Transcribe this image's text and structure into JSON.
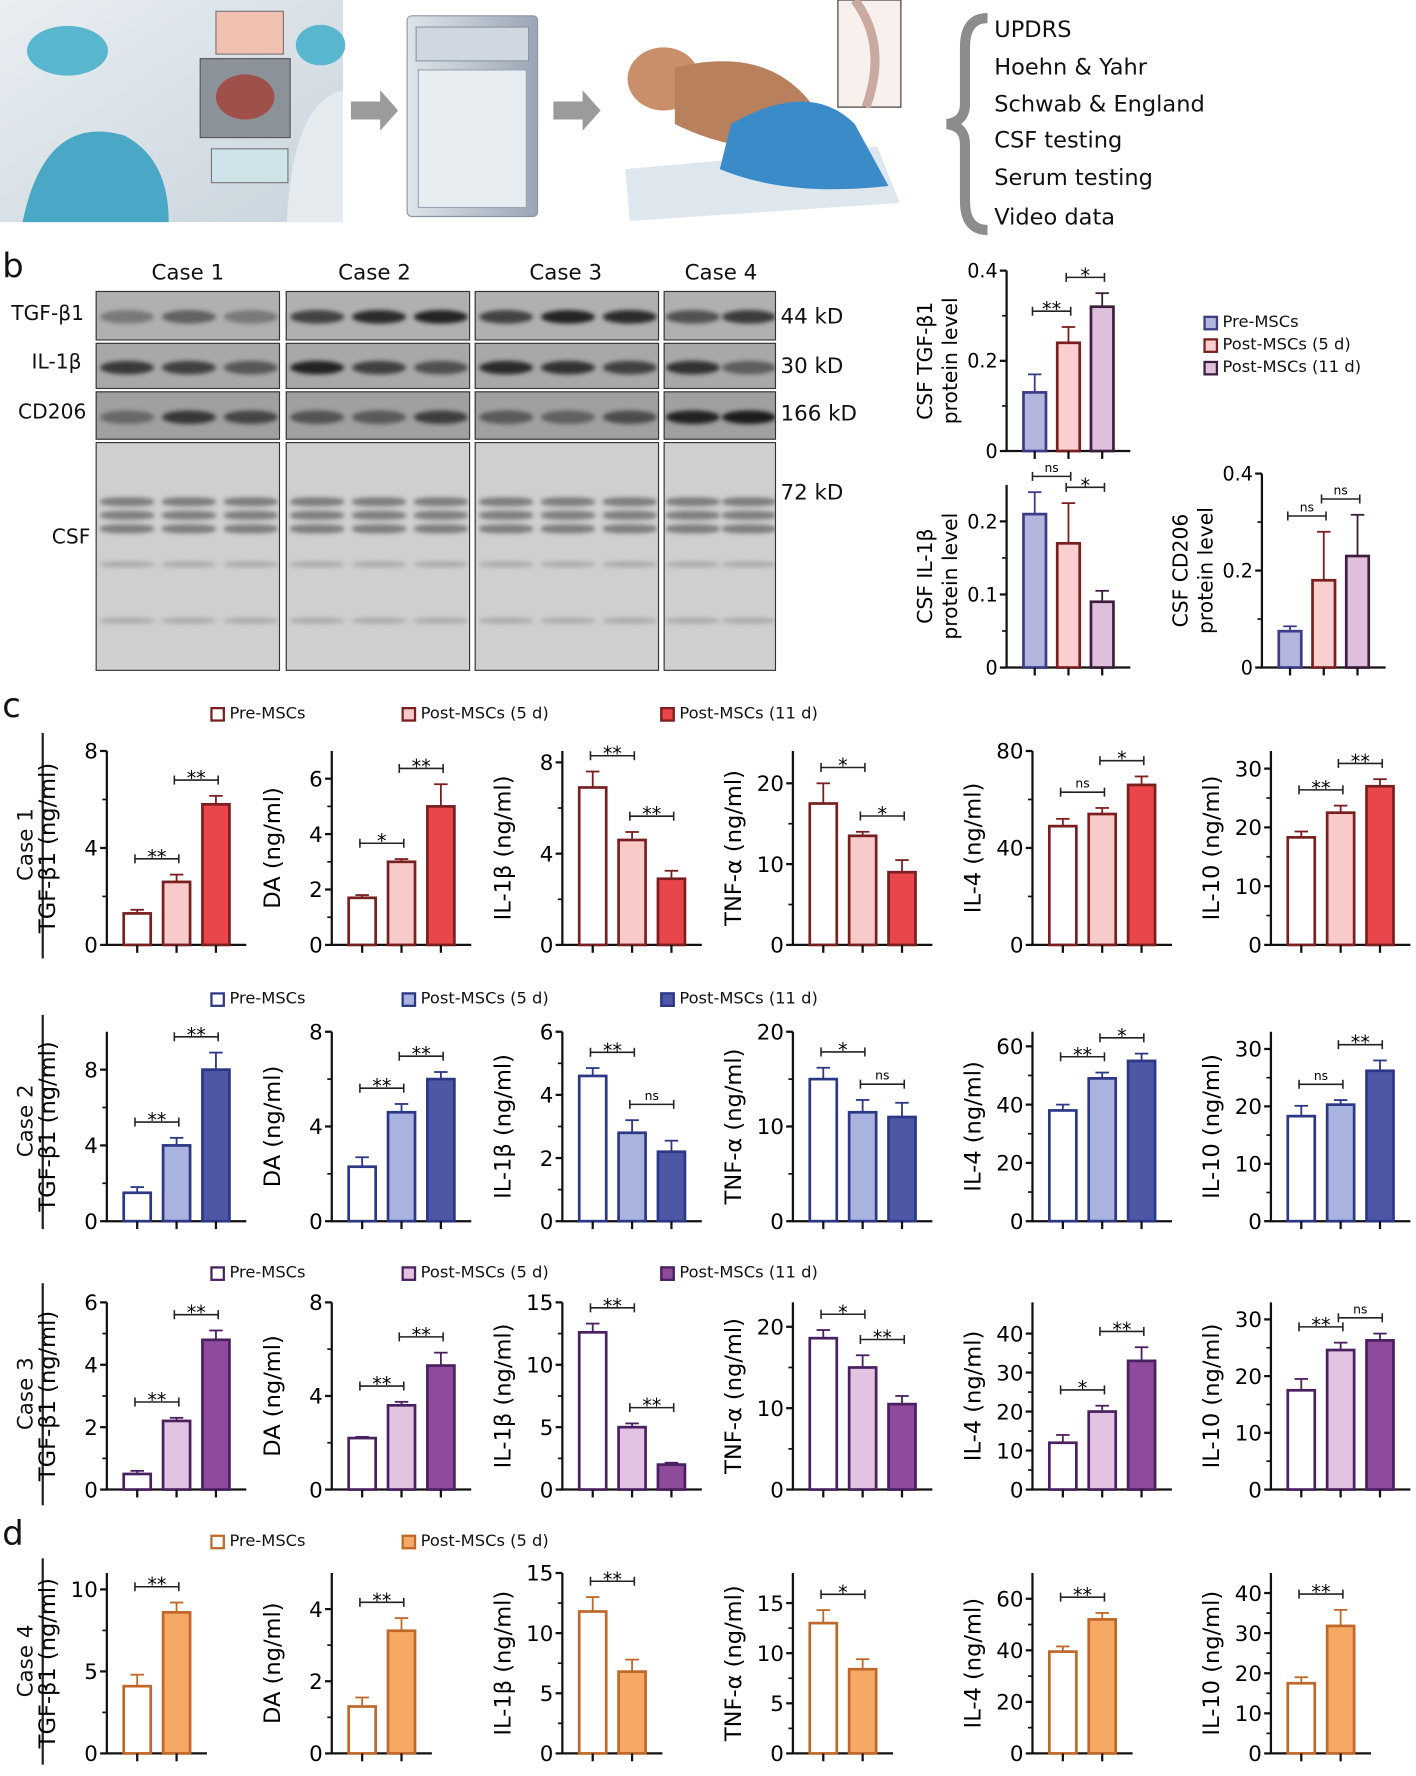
{
  "panels": {
    "a": "a",
    "b": "b",
    "c": "c",
    "d": "d"
  },
  "panel_a": {
    "outcomes": [
      "UPDRS",
      "Hoehn & Yahr",
      "Schwab & England",
      "CSF testing",
      "Serum testing",
      "Video data"
    ]
  },
  "panel_b_blot": {
    "cases": [
      "Case 1",
      "Case 2",
      "Case 3",
      "Case 4"
    ],
    "rows": [
      "TGF-β1",
      "IL-1β",
      "CD206",
      "CSF"
    ],
    "sizes": [
      "44 kD",
      "30 kD",
      "166 kD",
      "72 kD"
    ]
  },
  "legends": {
    "b": [
      "Pre-MSCs",
      "Post-MSCs (5 d)",
      "Post-MSCs (11 d)"
    ],
    "case1": [
      "Pre-MSCs",
      "Post-MSCs (5 d)",
      "Post-MSCs (11 d)"
    ],
    "case2": [
      "Pre-MSCs",
      "Post-MSCs (5 d)",
      "Post-MSCs (11 d)"
    ],
    "case3": [
      "Pre-MSCs",
      "Post-MSCs (5 d)",
      "Post-MSCs (11 d)"
    ],
    "case4": [
      "Pre-MSCs",
      "Post-MSCs (5 d)"
    ]
  },
  "row_labels": {
    "case1": "Case 1",
    "case2": "Case 2",
    "case3": "Case 3",
    "case4": "Case 4"
  },
  "colors": {
    "b": {
      "fills": [
        "#b3b6dc",
        "#fbcfd0",
        "#dfbfdc"
      ],
      "strokes": [
        "#3c3c88",
        "#7a1f1f",
        "#3c1f3c"
      ]
    },
    "case1": {
      "fills": [
        "#ffffff",
        "#f9caca",
        "#e8464a"
      ],
      "strokes": [
        "#7a1f1f",
        "#7a1f1f",
        "#7a1f1f"
      ]
    },
    "case2": {
      "fills": [
        "#ffffff",
        "#aab3df",
        "#4d57a6"
      ],
      "strokes": [
        "#2c3785",
        "#2c3785",
        "#2c3785"
      ]
    },
    "case3": {
      "fills": [
        "#ffffff",
        "#e2c3e2",
        "#8e4b9c"
      ],
      "strokes": [
        "#4a2060",
        "#4a2060",
        "#4a2060"
      ]
    },
    "case4": {
      "fills": [
        "#ffffff",
        "#f6a865"
      ],
      "strokes": [
        "#c0682a",
        "#c0682a"
      ]
    }
  },
  "chart_data": [
    {
      "id": "b-tgf",
      "group": "b",
      "type": "bar",
      "ylabel": [
        "CSF TGF-β1",
        "protein level"
      ],
      "ylim": [
        0,
        0.4
      ],
      "ticks": [
        "0",
        "0.2",
        "0.4"
      ],
      "tick_values": [
        0,
        0.2,
        0.4
      ],
      "values": [
        0.13,
        0.24,
        0.32
      ],
      "errors": [
        0.04,
        0.035,
        0.03
      ],
      "sig": [
        {
          "from": 0,
          "to": 1,
          "label": "**"
        },
        {
          "from": 1,
          "to": 2,
          "label": "*"
        }
      ]
    },
    {
      "id": "b-il1b",
      "group": "b",
      "type": "bar",
      "ylabel": [
        "CSF IL-1β",
        "protein level"
      ],
      "ylim": [
        0,
        0.25
      ],
      "ticks": [
        "0",
        "0.1",
        "0.2"
      ],
      "tick_values": [
        0,
        0.1,
        0.2
      ],
      "values": [
        0.21,
        0.17,
        0.09
      ],
      "errors": [
        0.03,
        0.055,
        0.015
      ],
      "sig": [
        {
          "from": 0,
          "to": 1,
          "label": "ns"
        },
        {
          "from": 1,
          "to": 2,
          "label": "*"
        }
      ]
    },
    {
      "id": "b-cd206",
      "group": "b",
      "type": "bar",
      "ylabel": [
        "CSF CD206",
        "protein level"
      ],
      "ylim": [
        0,
        0.4
      ],
      "ticks": [
        "0",
        "0.2",
        "0.4"
      ],
      "tick_values": [
        0,
        0.2,
        0.4
      ],
      "values": [
        0.075,
        0.18,
        0.23
      ],
      "errors": [
        0.01,
        0.1,
        0.085
      ],
      "sig": [
        {
          "from": 0,
          "to": 1,
          "label": "ns"
        },
        {
          "from": 1,
          "to": 2,
          "label": "ns"
        }
      ]
    },
    {
      "id": "c1-tgf",
      "group": "case1",
      "type": "bar",
      "ylabel": [
        "TGF-β1 (ng/ml)"
      ],
      "ylim": [
        0,
        8
      ],
      "ticks": [
        "0",
        "4",
        "8"
      ],
      "tick_values": [
        0,
        4,
        8
      ],
      "values": [
        1.3,
        2.6,
        5.8
      ],
      "errors": [
        0.15,
        0.3,
        0.35
      ],
      "sig": [
        {
          "from": 0,
          "to": 1,
          "label": "**"
        },
        {
          "from": 1,
          "to": 2,
          "label": "**"
        }
      ]
    },
    {
      "id": "c1-da",
      "group": "case1",
      "type": "bar",
      "ylabel": [
        "DA (ng/ml)"
      ],
      "ylim": [
        0,
        7
      ],
      "ticks": [
        "0",
        "2",
        "4",
        "6"
      ],
      "tick_values": [
        0,
        2,
        4,
        6
      ],
      "values": [
        1.7,
        3.0,
        5.0
      ],
      "errors": [
        0.1,
        0.1,
        0.8
      ],
      "sig": [
        {
          "from": 0,
          "to": 1,
          "label": "*"
        },
        {
          "from": 1,
          "to": 2,
          "label": "**"
        }
      ]
    },
    {
      "id": "c1-il1b",
      "group": "case1",
      "type": "bar",
      "ylabel": [
        "IL-1β (ng/ml)"
      ],
      "ylim": [
        0,
        8.5
      ],
      "ticks": [
        "0",
        "4",
        "8"
      ],
      "tick_values": [
        0,
        4,
        8
      ],
      "values": [
        6.9,
        4.6,
        2.9
      ],
      "errors": [
        0.7,
        0.35,
        0.35
      ],
      "sig": [
        {
          "from": 0,
          "to": 1,
          "label": "**"
        },
        {
          "from": 1,
          "to": 2,
          "label": "**"
        }
      ]
    },
    {
      "id": "c1-tnf",
      "group": "case1",
      "type": "bar",
      "ylabel": [
        "TNF-α (ng/ml)"
      ],
      "ylim": [
        0,
        24
      ],
      "ticks": [
        "0",
        "10",
        "20"
      ],
      "tick_values": [
        0,
        10,
        20
      ],
      "values": [
        17.5,
        13.5,
        9.0
      ],
      "errors": [
        2.5,
        0.5,
        1.5
      ],
      "sig": [
        {
          "from": 0,
          "to": 1,
          "label": "*"
        },
        {
          "from": 1,
          "to": 2,
          "label": "*"
        }
      ]
    },
    {
      "id": "c1-il4",
      "group": "case1",
      "type": "bar",
      "ylabel": [
        "IL-4 (ng/ml)"
      ],
      "ylim": [
        0,
        80
      ],
      "ticks": [
        "0",
        "40",
        "80"
      ],
      "tick_values": [
        0,
        40,
        80
      ],
      "values": [
        49,
        54,
        66
      ],
      "errors": [
        3,
        2.5,
        3.5
      ],
      "sig": [
        {
          "from": 0,
          "to": 1,
          "label": "ns"
        },
        {
          "from": 1,
          "to": 2,
          "label": "*"
        }
      ]
    },
    {
      "id": "c1-il10",
      "group": "case1",
      "type": "bar",
      "ylabel": [
        "IL-10 (ng/ml)"
      ],
      "ylim": [
        0,
        33
      ],
      "ticks": [
        "0",
        "10",
        "20",
        "30"
      ],
      "tick_values": [
        0,
        10,
        20,
        30
      ],
      "values": [
        18.3,
        22.5,
        27.0
      ],
      "errors": [
        1.0,
        1.2,
        1.2
      ],
      "sig": [
        {
          "from": 0,
          "to": 1,
          "label": "**"
        },
        {
          "from": 1,
          "to": 2,
          "label": "**"
        }
      ]
    },
    {
      "id": "c2-tgf",
      "group": "case2",
      "type": "bar",
      "ylabel": [
        "TGF-β1 (ng/ml)"
      ],
      "ylim": [
        0,
        10
      ],
      "ticks": [
        "0",
        "4",
        "8"
      ],
      "tick_values": [
        0,
        4,
        8
      ],
      "values": [
        1.5,
        4.0,
        8.0
      ],
      "errors": [
        0.3,
        0.4,
        0.9
      ],
      "sig": [
        {
          "from": 0,
          "to": 1,
          "label": "**"
        },
        {
          "from": 1,
          "to": 2,
          "label": "**"
        }
      ]
    },
    {
      "id": "c2-da",
      "group": "case2",
      "type": "bar",
      "ylabel": [
        "DA (ng/ml)"
      ],
      "ylim": [
        0,
        8
      ],
      "ticks": [
        "0",
        "4",
        "8"
      ],
      "tick_values": [
        0,
        4,
        8
      ],
      "values": [
        2.3,
        4.6,
        6.0
      ],
      "errors": [
        0.4,
        0.35,
        0.3
      ],
      "sig": [
        {
          "from": 0,
          "to": 1,
          "label": "**"
        },
        {
          "from": 1,
          "to": 2,
          "label": "**"
        }
      ]
    },
    {
      "id": "c2-il1b",
      "group": "case2",
      "type": "bar",
      "ylabel": [
        "IL-1β (ng/ml)"
      ],
      "ylim": [
        0,
        6
      ],
      "ticks": [
        "0",
        "2",
        "4",
        "6"
      ],
      "tick_values": [
        0,
        2,
        4,
        6
      ],
      "values": [
        4.6,
        2.8,
        2.2
      ],
      "errors": [
        0.25,
        0.4,
        0.35
      ],
      "sig": [
        {
          "from": 0,
          "to": 1,
          "label": "**"
        },
        {
          "from": 1,
          "to": 2,
          "label": "ns"
        }
      ]
    },
    {
      "id": "c2-tnf",
      "group": "case2",
      "type": "bar",
      "ylabel": [
        "TNF-α (ng/ml)"
      ],
      "ylim": [
        0,
        20
      ],
      "ticks": [
        "0",
        "10",
        "20"
      ],
      "tick_values": [
        0,
        10,
        20
      ],
      "values": [
        15.0,
        11.5,
        11.0
      ],
      "errors": [
        1.2,
        1.3,
        1.5
      ],
      "sig": [
        {
          "from": 0,
          "to": 1,
          "label": "*"
        },
        {
          "from": 1,
          "to": 2,
          "label": "ns"
        }
      ]
    },
    {
      "id": "c2-il4",
      "group": "case2",
      "type": "bar",
      "ylabel": [
        "IL-4 (ng/ml)"
      ],
      "ylim": [
        0,
        65
      ],
      "ticks": [
        "0",
        "20",
        "40",
        "60"
      ],
      "tick_values": [
        0,
        20,
        40,
        60
      ],
      "values": [
        38,
        49,
        55
      ],
      "errors": [
        2,
        2,
        2.5
      ],
      "sig": [
        {
          "from": 0,
          "to": 1,
          "label": "**"
        },
        {
          "from": 1,
          "to": 2,
          "label": "*"
        }
      ]
    },
    {
      "id": "c2-il10",
      "group": "case2",
      "type": "bar",
      "ylabel": [
        "IL-10 (ng/ml)"
      ],
      "ylim": [
        0,
        33
      ],
      "ticks": [
        "0",
        "10",
        "20",
        "30"
      ],
      "tick_values": [
        0,
        10,
        20,
        30
      ],
      "values": [
        18.3,
        20.3,
        26.2
      ],
      "errors": [
        1.8,
        0.8,
        1.8
      ],
      "sig": [
        {
          "from": 0,
          "to": 1,
          "label": "ns"
        },
        {
          "from": 1,
          "to": 2,
          "label": "**"
        }
      ]
    },
    {
      "id": "c3-tgf",
      "group": "case3",
      "type": "bar",
      "ylabel": [
        "TGF-β1 (ng/ml)"
      ],
      "ylim": [
        0,
        6
      ],
      "ticks": [
        "0",
        "2",
        "4",
        "6"
      ],
      "tick_values": [
        0,
        2,
        4,
        6
      ],
      "values": [
        0.5,
        2.2,
        4.8
      ],
      "errors": [
        0.1,
        0.1,
        0.3
      ],
      "sig": [
        {
          "from": 0,
          "to": 1,
          "label": "**"
        },
        {
          "from": 1,
          "to": 2,
          "label": "**"
        }
      ]
    },
    {
      "id": "c3-da",
      "group": "case3",
      "type": "bar",
      "ylabel": [
        "DA (ng/ml)"
      ],
      "ylim": [
        0,
        8
      ],
      "ticks": [
        "0",
        "4",
        "8"
      ],
      "tick_values": [
        0,
        4,
        8
      ],
      "values": [
        2.2,
        3.6,
        5.3
      ],
      "errors": [
        0.05,
        0.15,
        0.55
      ],
      "sig": [
        {
          "from": 0,
          "to": 1,
          "label": "**"
        },
        {
          "from": 1,
          "to": 2,
          "label": "**"
        }
      ]
    },
    {
      "id": "c3-il1b",
      "group": "case3",
      "type": "bar",
      "ylabel": [
        "IL-1β (ng/ml)"
      ],
      "ylim": [
        0,
        15
      ],
      "ticks": [
        "0",
        "5",
        "10",
        "15"
      ],
      "tick_values": [
        0,
        5,
        10,
        15
      ],
      "values": [
        12.6,
        5.0,
        2.0
      ],
      "errors": [
        0.7,
        0.3,
        0.15
      ],
      "sig": [
        {
          "from": 0,
          "to": 1,
          "label": "**"
        },
        {
          "from": 1,
          "to": 2,
          "label": "**"
        }
      ]
    },
    {
      "id": "c3-tnf",
      "group": "case3",
      "type": "bar",
      "ylabel": [
        "TNF-α (ng/ml)"
      ],
      "ylim": [
        0,
        23
      ],
      "ticks": [
        "0",
        "10",
        "20"
      ],
      "tick_values": [
        0,
        10,
        20
      ],
      "values": [
        18.6,
        15.0,
        10.5
      ],
      "errors": [
        1.0,
        1.5,
        1.0
      ],
      "sig": [
        {
          "from": 0,
          "to": 1,
          "label": "*"
        },
        {
          "from": 1,
          "to": 2,
          "label": "**"
        }
      ]
    },
    {
      "id": "c3-il4",
      "group": "case3",
      "type": "bar",
      "ylabel": [
        "IL-4 (ng/ml)"
      ],
      "ylim": [
        0,
        48
      ],
      "ticks": [
        "0",
        "10",
        "20",
        "30",
        "40"
      ],
      "tick_values": [
        0,
        10,
        20,
        30,
        40
      ],
      "values": [
        12,
        20,
        33
      ],
      "errors": [
        2,
        1.5,
        3.5
      ],
      "sig": [
        {
          "from": 0,
          "to": 1,
          "label": "*"
        },
        {
          "from": 1,
          "to": 2,
          "label": "**"
        }
      ]
    },
    {
      "id": "c3-il10",
      "group": "case3",
      "type": "bar",
      "ylabel": [
        "IL-10 (ng/ml)"
      ],
      "ylim": [
        0,
        33
      ],
      "ticks": [
        "0",
        "10",
        "20",
        "30"
      ],
      "tick_values": [
        0,
        10,
        20,
        30
      ],
      "values": [
        17.5,
        24.6,
        26.3
      ],
      "errors": [
        2.0,
        1.3,
        1.2
      ],
      "sig": [
        {
          "from": 0,
          "to": 1,
          "label": "**"
        },
        {
          "from": 1,
          "to": 2,
          "label": "ns"
        }
      ]
    },
    {
      "id": "d-tgf",
      "group": "case4",
      "type": "bar",
      "ylabel": [
        "TGF-β1 (ng/ml)"
      ],
      "ylim": [
        0,
        11
      ],
      "ticks": [
        "0",
        "5",
        "10"
      ],
      "tick_values": [
        0,
        5,
        10
      ],
      "values": [
        4.1,
        8.6
      ],
      "errors": [
        0.7,
        0.6
      ],
      "sig": [
        {
          "from": 0,
          "to": 1,
          "label": "**"
        }
      ]
    },
    {
      "id": "d-da",
      "group": "case4",
      "type": "bar",
      "ylabel": [
        "DA (ng/ml)"
      ],
      "ylim": [
        0,
        5
      ],
      "ticks": [
        "0",
        "2",
        "4"
      ],
      "tick_values": [
        0,
        2,
        4
      ],
      "values": [
        1.3,
        3.4
      ],
      "errors": [
        0.25,
        0.35
      ],
      "sig": [
        {
          "from": 0,
          "to": 1,
          "label": "**"
        }
      ]
    },
    {
      "id": "d-il1b",
      "group": "case4",
      "type": "bar",
      "ylabel": [
        "IL-1β (ng/ml)"
      ],
      "ylim": [
        0,
        15
      ],
      "ticks": [
        "0",
        "5",
        "10",
        "15"
      ],
      "tick_values": [
        0,
        5,
        10,
        15
      ],
      "values": [
        11.8,
        6.8
      ],
      "errors": [
        1.2,
        1.0
      ],
      "sig": [
        {
          "from": 0,
          "to": 1,
          "label": "**"
        }
      ]
    },
    {
      "id": "d-tnf",
      "group": "case4",
      "type": "bar",
      "ylabel": [
        "TNF-α (ng/ml)"
      ],
      "ylim": [
        0,
        18
      ],
      "ticks": [
        "0",
        "5",
        "10",
        "15"
      ],
      "tick_values": [
        0,
        5,
        10,
        15
      ],
      "values": [
        13.0,
        8.4
      ],
      "errors": [
        1.3,
        1.0
      ],
      "sig": [
        {
          "from": 0,
          "to": 1,
          "label": "*"
        }
      ]
    },
    {
      "id": "d-il4",
      "group": "case4",
      "type": "bar",
      "ylabel": [
        "IL-4 (ng/ml)"
      ],
      "ylim": [
        0,
        70
      ],
      "ticks": [
        "0",
        "20",
        "40",
        "60"
      ],
      "tick_values": [
        0,
        20,
        40,
        60
      ],
      "values": [
        39.5,
        52
      ],
      "errors": [
        2,
        2.5
      ],
      "sig": [
        {
          "from": 0,
          "to": 1,
          "label": "**"
        }
      ]
    },
    {
      "id": "d-il10",
      "group": "case4",
      "type": "bar",
      "ylabel": [
        "IL-10 (ng/ml)"
      ],
      "ylim": [
        0,
        45
      ],
      "ticks": [
        "0",
        "10",
        "20",
        "30",
        "40"
      ],
      "tick_values": [
        0,
        10,
        20,
        30,
        40
      ],
      "values": [
        17.5,
        31.8
      ],
      "errors": [
        1.5,
        4.0
      ],
      "sig": [
        {
          "from": 0,
          "to": 1,
          "label": "**"
        }
      ]
    }
  ]
}
